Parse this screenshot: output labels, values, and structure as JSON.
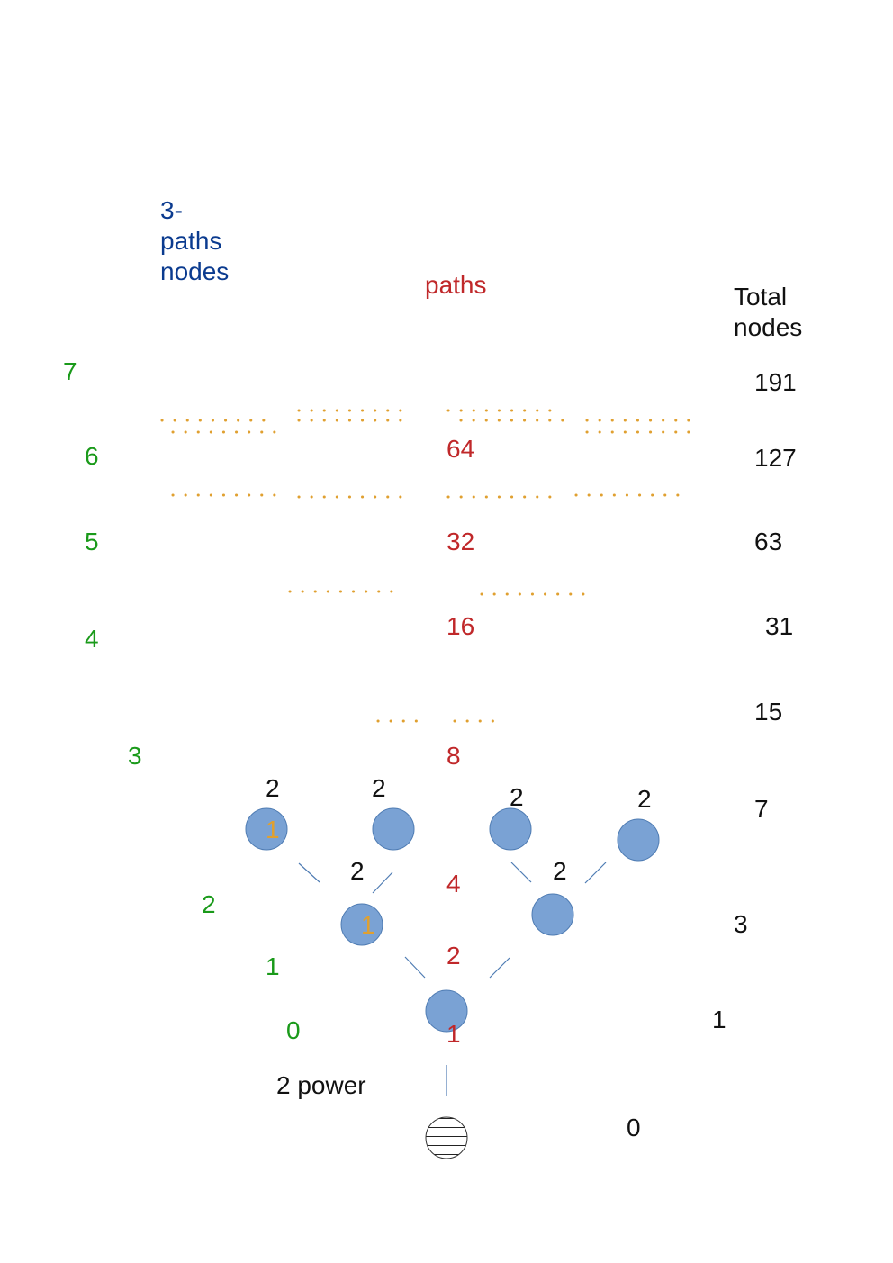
{
  "headers": {
    "three_paths_nodes": [
      "3-",
      "paths",
      "nodes"
    ],
    "paths": "paths",
    "total_nodes": [
      "Total",
      "nodes"
    ]
  },
  "power_label": "2 power",
  "powers": [
    "7",
    "6",
    "5",
    "4",
    "3",
    "2",
    "1",
    "0"
  ],
  "paths": [
    "64",
    "32",
    "16",
    "8",
    "4",
    "2",
    "1"
  ],
  "totals": [
    "191",
    "127",
    "63",
    "31",
    "15",
    "7",
    "3",
    "1",
    "0"
  ],
  "branch_counts": {
    "top_left": "2",
    "top_mid_left": "2",
    "top_mid_right": "2",
    "top_right": "2",
    "mid_left": "2",
    "mid_right": "2"
  },
  "node_marks": {
    "top_left": "1",
    "mid_left": "1"
  },
  "colors": {
    "node_fill": "#7aa2d4",
    "node_stroke": "#4f7cb3",
    "heading_blue": "#0b3b8f",
    "paths_red": "#c0282a",
    "power_green": "#1a9a1a",
    "dots_orange": "#e0a030"
  }
}
